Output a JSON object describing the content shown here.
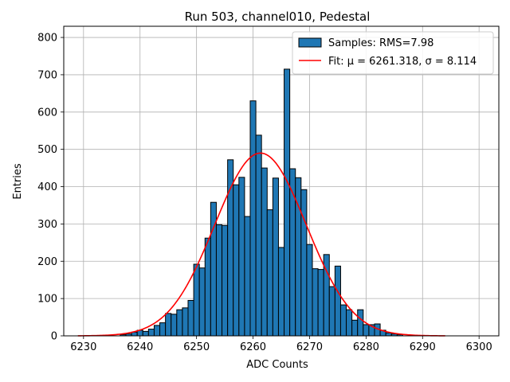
{
  "chart_data": {
    "type": "bar",
    "title": "Run 503, channel010, Pedestal",
    "xlabel": "ADC Counts",
    "ylabel": "Entries",
    "xlim": [
      6226.5,
      6303.5
    ],
    "ylim": [
      0,
      830
    ],
    "xticks": [
      6230,
      6240,
      6250,
      6260,
      6270,
      6280,
      6290,
      6300
    ],
    "yticks": [
      0,
      100,
      200,
      300,
      400,
      500,
      600,
      700,
      800
    ],
    "grid": true,
    "legend_position": "top-right",
    "colors": {
      "bars": "#1f77b4",
      "bar_edge": "#000000",
      "fit": "#ff0000"
    },
    "series": [
      {
        "name": "Samples: RMS=7.98",
        "kind": "histogram",
        "bin_width": 1,
        "bin_centers": [
          6237,
          6238,
          6239,
          6240,
          6241,
          6242,
          6243,
          6244,
          6245,
          6246,
          6247,
          6248,
          6249,
          6250,
          6251,
          6252,
          6253,
          6254,
          6255,
          6256,
          6257,
          6258,
          6259,
          6260,
          6261,
          6262,
          6263,
          6264,
          6265,
          6266,
          6267,
          6268,
          6269,
          6270,
          6271,
          6272,
          6273,
          6274,
          6275,
          6276,
          6277,
          6278,
          6279,
          6280,
          6281,
          6282,
          6283,
          6284,
          6285,
          6286
        ],
        "values": [
          3,
          5,
          10,
          15,
          12,
          18,
          28,
          35,
          60,
          58,
          70,
          75,
          95,
          192,
          182,
          262,
          358,
          298,
          296,
          472,
          405,
          425,
          320,
          630,
          538,
          450,
          338,
          423,
          237,
          715,
          448,
          424,
          392,
          245,
          180,
          178,
          218,
          132,
          187,
          83,
          70,
          42,
          70,
          30,
          30,
          32,
          15,
          8,
          5,
          3
        ]
      },
      {
        "name": "Fit: μ = 6261.318, σ = 8.114",
        "kind": "gaussian-fit",
        "mu": 6261.318,
        "sigma": 8.114,
        "amplitude": 490,
        "x_range": [
          6229,
          6294
        ]
      }
    ]
  }
}
